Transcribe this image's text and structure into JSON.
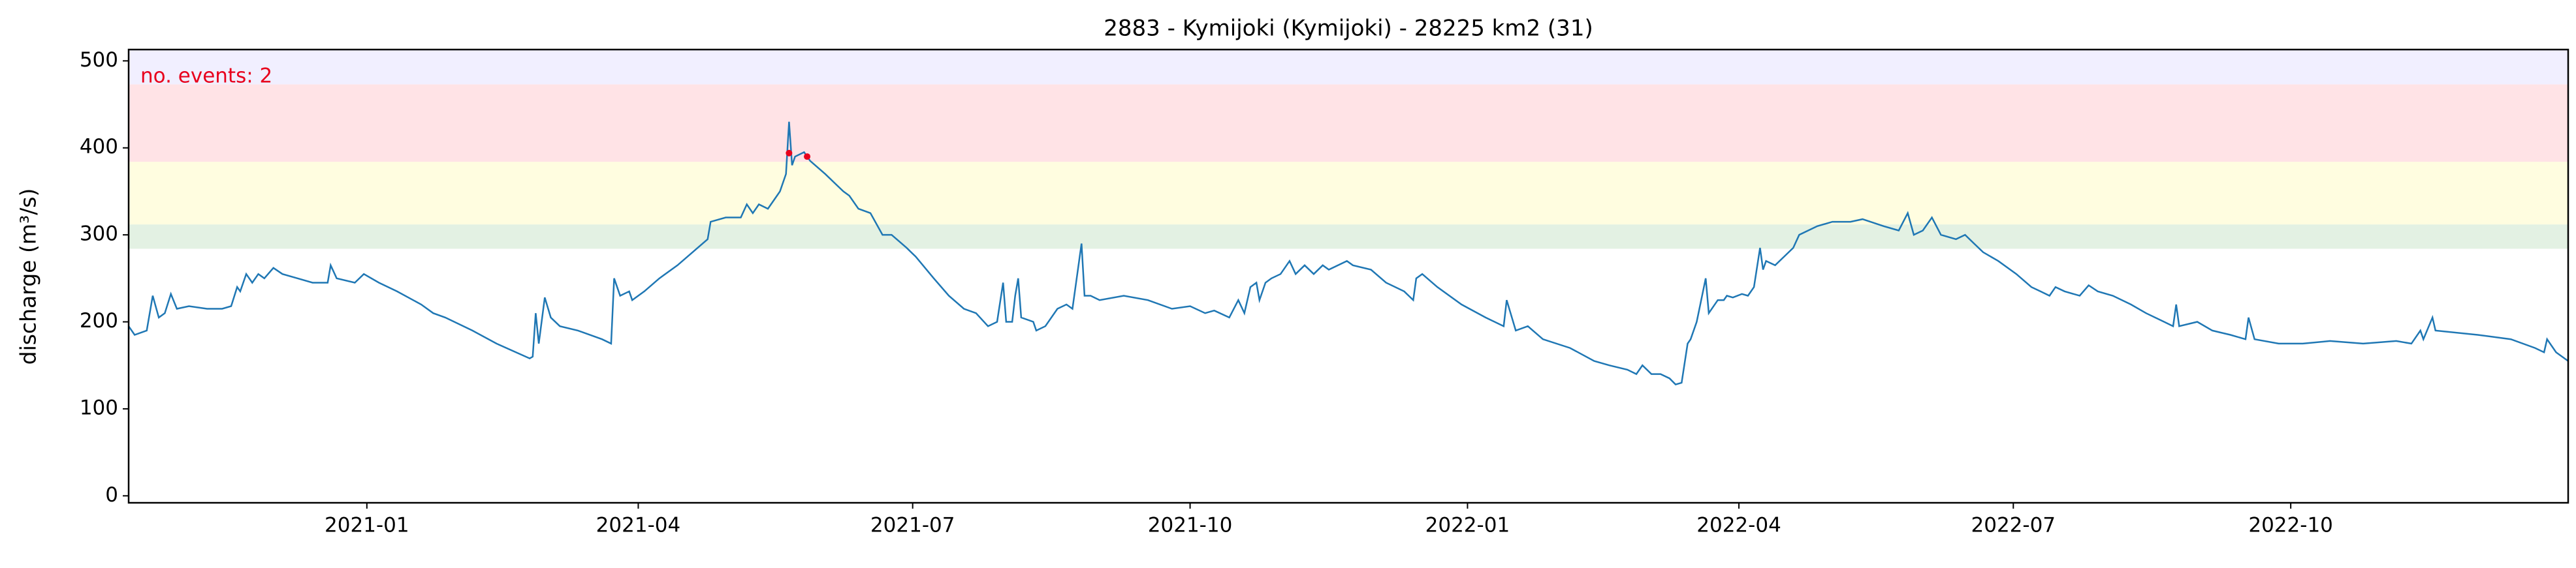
{
  "chart_data": {
    "type": "line",
    "title": "2883 - Kymijoki (Kymijoki) - 28225 km2 (31)",
    "ylabel": "discharge (m³/s)",
    "annotation": "no. events: 2",
    "ylim": [
      -8,
      513
    ],
    "yticks": [
      0,
      100,
      200,
      300,
      400,
      500
    ],
    "xlim": [
      -79,
      730
    ],
    "xticks": [
      {
        "value": 0,
        "label": "2021-01"
      },
      {
        "value": 90,
        "label": "2021-04"
      },
      {
        "value": 181,
        "label": "2021-07"
      },
      {
        "value": 273,
        "label": "2021-10"
      },
      {
        "value": 365,
        "label": "2022-01"
      },
      {
        "value": 455,
        "label": "2022-04"
      },
      {
        "value": 546,
        "label": "2022-07"
      },
      {
        "value": 638,
        "label": "2022-10"
      }
    ],
    "bands": [
      {
        "from": 284,
        "to": 312,
        "color": "#e3f1e3"
      },
      {
        "from": 312,
        "to": 384,
        "color": "#fffde0"
      },
      {
        "from": 384,
        "to": 473,
        "color": "#ffe3e6"
      },
      {
        "from": 473,
        "to": 513,
        "color": "#f1efff"
      }
    ],
    "series": [
      {
        "color": "#1f77b4",
        "x": [
          -79,
          -77,
          -73,
          -71,
          -69,
          -67,
          -65,
          -63,
          -59,
          -53,
          -48,
          -45,
          -43,
          -42,
          -40,
          -38,
          -36,
          -34,
          -31,
          -28,
          -23,
          -18,
          -13,
          -12,
          -10,
          -4,
          -1,
          4,
          10,
          18,
          22,
          26,
          35,
          43,
          54,
          55,
          56,
          57,
          59,
          61,
          64,
          70,
          78,
          81,
          82,
          84,
          87,
          88,
          92,
          97,
          103,
          108,
          113,
          114,
          119,
          124,
          126,
          128,
          130,
          133,
          136,
          137,
          139,
          140,
          141,
          142,
          145,
          147,
          152,
          155,
          158,
          160,
          163,
          167,
          171,
          174,
          179,
          182,
          188,
          193,
          198,
          202,
          206,
          209,
          211,
          212,
          214,
          215,
          216,
          217,
          221,
          222,
          225,
          229,
          232,
          234,
          237,
          238,
          240,
          243,
          251,
          259,
          267,
          273,
          278,
          281,
          286,
          289,
          291,
          293,
          295,
          296,
          298,
          300,
          303,
          306,
          308,
          311,
          314,
          317,
          319,
          325,
          327,
          333,
          338,
          344,
          347,
          348,
          350,
          355,
          363,
          371,
          377,
          378,
          381,
          385,
          390,
          399,
          407,
          412,
          418,
          421,
          423,
          426,
          429,
          432,
          434,
          436,
          438,
          439,
          441,
          444,
          445,
          448,
          450,
          451,
          453,
          456,
          458,
          460,
          462,
          463,
          464,
          467,
          470,
          473,
          475,
          481,
          486,
          492,
          496,
          503,
          508,
          511,
          513,
          516,
          519,
          522,
          527,
          530,
          533,
          536,
          541,
          547,
          552,
          555,
          558,
          560,
          563,
          568,
          571,
          574,
          579,
          585,
          590,
          596,
          599,
          600,
          601,
          607,
          612,
          618,
          623,
          624,
          626,
          634,
          642,
          651,
          662,
          673,
          678,
          681,
          682,
          685,
          686,
          700,
          711,
          719,
          722,
          723,
          726,
          730
        ],
        "values": [
          195,
          185,
          190,
          230,
          205,
          210,
          232,
          215,
          218,
          215,
          215,
          218,
          240,
          235,
          255,
          245,
          255,
          250,
          262,
          255,
          250,
          245,
          245,
          265,
          250,
          245,
          255,
          245,
          235,
          220,
          210,
          205,
          190,
          175,
          158,
          160,
          210,
          175,
          228,
          205,
          195,
          190,
          180,
          175,
          250,
          230,
          235,
          225,
          235,
          250,
          265,
          280,
          295,
          315,
          320,
          320,
          335,
          325,
          335,
          330,
          345,
          350,
          370,
          430,
          380,
          390,
          395,
          385,
          370,
          360,
          350,
          345,
          330,
          325,
          300,
          300,
          285,
          275,
          250,
          230,
          215,
          210,
          195,
          200,
          245,
          200,
          200,
          230,
          250,
          205,
          200,
          190,
          195,
          215,
          220,
          215,
          290,
          230,
          230,
          225,
          230,
          225,
          215,
          218,
          210,
          213,
          205,
          225,
          210,
          240,
          245,
          225,
          245,
          250,
          255,
          270,
          255,
          265,
          255,
          265,
          260,
          270,
          265,
          260,
          245,
          235,
          225,
          250,
          255,
          240,
          220,
          205,
          195,
          225,
          190,
          195,
          180,
          170,
          155,
          150,
          145,
          140,
          150,
          140,
          140,
          135,
          128,
          130,
          175,
          180,
          200,
          250,
          210,
          225,
          225,
          230,
          228,
          232,
          230,
          240,
          285,
          260,
          270,
          265,
          275,
          285,
          300,
          310,
          315,
          315,
          318,
          310,
          305,
          325,
          300,
          305,
          320,
          300,
          295,
          300,
          290,
          280,
          270,
          255,
          240,
          235,
          230,
          240,
          235,
          230,
          242,
          235,
          230,
          220,
          210,
          200,
          195,
          220,
          195,
          200,
          190,
          185,
          180,
          205,
          180,
          175,
          175,
          178,
          175,
          178,
          175,
          190,
          180,
          205,
          190,
          185,
          180,
          170,
          165,
          180,
          165,
          155
        ]
      }
    ],
    "events": {
      "color": "#e8001c",
      "x": [
        140,
        146
      ],
      "values": [
        394,
        390
      ]
    }
  }
}
